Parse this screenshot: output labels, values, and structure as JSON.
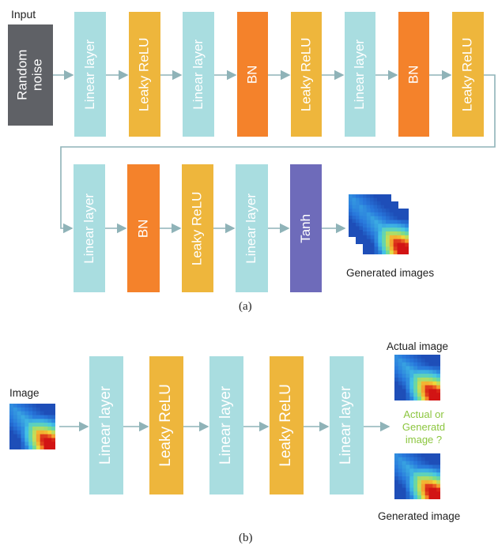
{
  "panel_a": {
    "input_label": "Input",
    "input_block": {
      "line1": "Random",
      "line2": "noise"
    },
    "row1": [
      "Linear layer",
      "Leaky ReLU",
      "Linear layer",
      "BN",
      "Leaky ReLU",
      "Linear layer",
      "BN",
      "Leaky ReLU"
    ],
    "row2": [
      "Linear layer",
      "BN",
      "Leaky ReLU",
      "Linear layer",
      "Tanh"
    ],
    "output_label": "Generated images",
    "caption": "(a)"
  },
  "panel_b": {
    "input_label": "Image",
    "blocks": [
      "Linear layer",
      "Leaky ReLU",
      "Linear layer",
      "Leaky ReLU",
      "Linear layer"
    ],
    "actual_label": "Actual image",
    "question": {
      "line1": "Actual or",
      "line2": "Generatd",
      "line3": "image ?"
    },
    "generated_label": "Generated image",
    "caption": "(b)"
  },
  "colors": {
    "linear": "#a9dde0",
    "relu": "#eeb63c",
    "bn": "#f4822b",
    "tanh": "#6e6bba",
    "noise": "#5f6166",
    "arrow": "#8fb3b8",
    "question_text": "#8cc63f"
  },
  "icons": [
    "heatmap-thumbnail"
  ]
}
